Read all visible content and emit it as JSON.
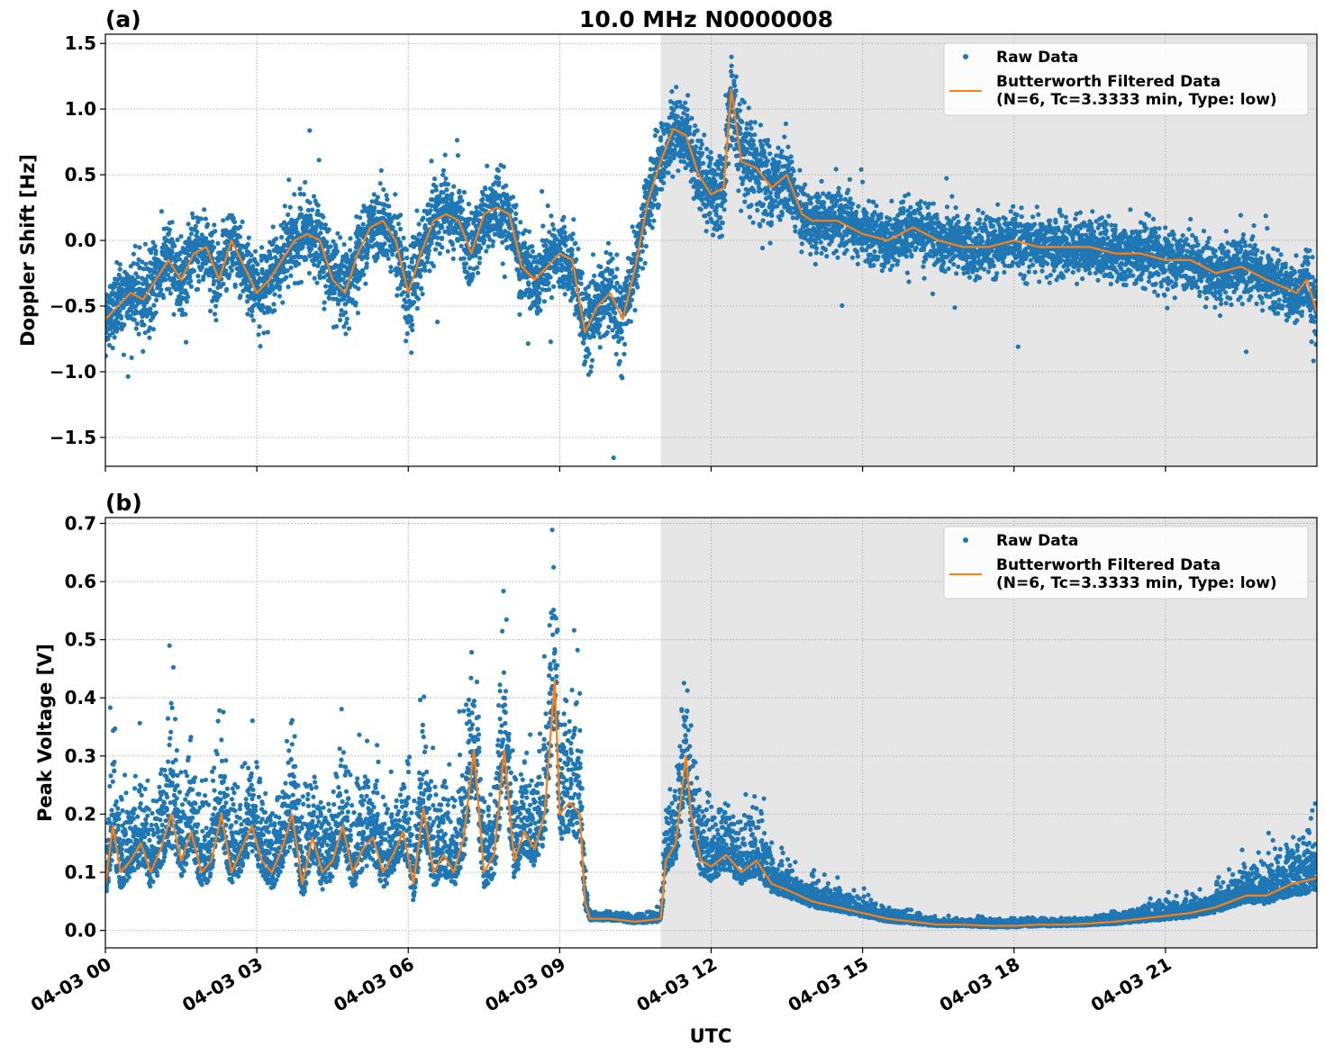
{
  "figure": {
    "title": "10.0 MHz N0000008",
    "xlabel": "UTC",
    "shaded_region": {
      "start_hour": 11.0,
      "end_hour": 24.0,
      "color": "#e6e6e6"
    },
    "x_ticks": [
      {
        "hour": 0,
        "label": "04-03 00"
      },
      {
        "hour": 3,
        "label": "04-03 03"
      },
      {
        "hour": 6,
        "label": "04-03 06"
      },
      {
        "hour": 9,
        "label": "04-03 09"
      },
      {
        "hour": 12,
        "label": "04-03 12"
      },
      {
        "hour": 15,
        "label": "04-03 15"
      },
      {
        "hour": 18,
        "label": "04-03 18"
      },
      {
        "hour": 21,
        "label": "04-03 21"
      }
    ],
    "xlim": [
      0,
      24
    ],
    "colors": {
      "raw": "#1f77b4",
      "filtered": "#ff7f0e",
      "grid": "#b0b0b0"
    }
  },
  "legend": {
    "raw_label": "Raw Data",
    "filtered_label_line1": "Butterworth Filtered Data",
    "filtered_label_line2": "(N=6, Tc=3.3333 min, Type: low)",
    "placement": "upper right"
  },
  "panels": [
    {
      "id": "a",
      "letter": "(a)",
      "ylabel": "Doppler Shift [Hz]",
      "ylim": [
        -1.72,
        1.57
      ],
      "yticks": [
        1.5,
        1.0,
        0.5,
        0.0,
        -0.5,
        -1.0,
        -1.5
      ],
      "ytick_labels": [
        "1.5",
        "1.0",
        "0.5",
        "0.0",
        "−0.5",
        "−1.0",
        "−1.5"
      ]
    },
    {
      "id": "b",
      "letter": "(b)",
      "ylabel": "Peak Voltage [V]",
      "ylim": [
        -0.03,
        0.71
      ],
      "yticks": [
        0.7,
        0.6,
        0.5,
        0.4,
        0.3,
        0.2,
        0.1,
        0.0
      ],
      "ytick_labels": [
        "0.7",
        "0.6",
        "0.5",
        "0.4",
        "0.3",
        "0.2",
        "0.1",
        "0.0"
      ]
    }
  ],
  "chart_data": [
    {
      "type": "scatter",
      "title": "10.0 MHz N0000008",
      "panel": "(a)",
      "xlabel": "",
      "ylabel": "Doppler Shift [Hz]",
      "xlim": [
        0,
        24
      ],
      "ylim": [
        -1.72,
        1.57
      ],
      "grid": true,
      "legend": "top-right",
      "series": [
        {
          "name": "Butterworth Filtered Data (N=6, Tc=3.3333 min, Type: low)",
          "kind": "line",
          "color": "#ff7f0e",
          "x": [
            0.0,
            0.25,
            0.5,
            0.75,
            1.0,
            1.25,
            1.5,
            1.75,
            2.0,
            2.25,
            2.5,
            2.75,
            3.0,
            3.25,
            3.5,
            3.75,
            4.0,
            4.25,
            4.5,
            4.75,
            5.0,
            5.25,
            5.5,
            5.75,
            6.0,
            6.25,
            6.5,
            6.75,
            7.0,
            7.25,
            7.5,
            7.75,
            8.0,
            8.25,
            8.5,
            8.75,
            9.0,
            9.25,
            9.5,
            9.75,
            10.0,
            10.25,
            10.5,
            10.75,
            11.0,
            11.25,
            11.5,
            11.75,
            12.0,
            12.25,
            12.4,
            12.6,
            12.9,
            13.2,
            13.5,
            13.8,
            14.0,
            14.5,
            15.0,
            15.5,
            16.0,
            16.5,
            17.0,
            17.5,
            18.0,
            18.5,
            19.0,
            19.5,
            20.0,
            20.5,
            21.0,
            21.5,
            22.0,
            22.5,
            23.0,
            23.3,
            23.6,
            23.8,
            24.0
          ],
          "y": [
            -0.6,
            -0.5,
            -0.4,
            -0.45,
            -0.3,
            -0.15,
            -0.3,
            -0.1,
            -0.05,
            -0.3,
            0.0,
            -0.2,
            -0.4,
            -0.3,
            -0.15,
            0.0,
            0.05,
            0.0,
            -0.3,
            -0.4,
            -0.1,
            0.1,
            0.15,
            0.0,
            -0.4,
            -0.1,
            0.15,
            0.2,
            0.15,
            -0.1,
            0.2,
            0.25,
            0.2,
            -0.2,
            -0.3,
            -0.2,
            -0.1,
            -0.15,
            -0.7,
            -0.5,
            -0.4,
            -0.6,
            -0.2,
            0.3,
            0.6,
            0.85,
            0.8,
            0.5,
            0.35,
            0.4,
            1.15,
            0.6,
            0.55,
            0.4,
            0.5,
            0.2,
            0.15,
            0.15,
            0.05,
            0.0,
            0.1,
            0.0,
            -0.05,
            -0.05,
            0.0,
            -0.05,
            -0.05,
            -0.05,
            -0.1,
            -0.1,
            -0.15,
            -0.15,
            -0.25,
            -0.2,
            -0.3,
            -0.35,
            -0.4,
            -0.3,
            -0.55
          ]
        },
        {
          "name": "Raw Data",
          "kind": "scatter",
          "color": "#1f77b4",
          "spread_hz": [
            0.25,
            0.25,
            0.25,
            0.25,
            0.25,
            0.25,
            0.25,
            0.25,
            0.25,
            0.25,
            0.25,
            0.25,
            0.25,
            0.25,
            0.25,
            0.25,
            0.25,
            0.25,
            0.25,
            0.25,
            0.25,
            0.25,
            0.25,
            0.25,
            0.35,
            0.25,
            0.25,
            0.25,
            0.25,
            0.25,
            0.25,
            0.25,
            0.25,
            0.25,
            0.25,
            0.25,
            0.25,
            0.25,
            0.3,
            0.3,
            0.3,
            0.3,
            0.25,
            0.25,
            0.25,
            0.25,
            0.25,
            0.25,
            0.3,
            0.3,
            0.3,
            0.3,
            0.3,
            0.3,
            0.25,
            0.2,
            0.2,
            0.2,
            0.2,
            0.2,
            0.2,
            0.2,
            0.2,
            0.2,
            0.2,
            0.2,
            0.2,
            0.2,
            0.2,
            0.2,
            0.2,
            0.2,
            0.2,
            0.2,
            0.2,
            0.2,
            0.2,
            0.2,
            0.25
          ]
        }
      ]
    },
    {
      "type": "scatter",
      "panel": "(b)",
      "xlabel": "UTC",
      "ylabel": "Peak Voltage [V]",
      "xlim": [
        0,
        24
      ],
      "ylim": [
        -0.03,
        0.71
      ],
      "grid": true,
      "legend": "top-right",
      "series": [
        {
          "name": "Butterworth Filtered Data (N=6, Tc=3.3333 min, Type: low)",
          "kind": "line",
          "color": "#ff7f0e",
          "x": [
            0.0,
            0.15,
            0.3,
            0.5,
            0.7,
            0.9,
            1.1,
            1.3,
            1.5,
            1.7,
            1.9,
            2.1,
            2.3,
            2.5,
            2.7,
            2.9,
            3.1,
            3.3,
            3.5,
            3.7,
            3.9,
            4.1,
            4.3,
            4.5,
            4.7,
            4.9,
            5.1,
            5.3,
            5.5,
            5.7,
            5.9,
            6.1,
            6.3,
            6.5,
            6.7,
            6.9,
            7.1,
            7.3,
            7.5,
            7.7,
            7.9,
            8.1,
            8.3,
            8.5,
            8.7,
            8.9,
            9.0,
            9.2,
            9.4,
            9.5,
            9.6,
            10.0,
            10.5,
            11.0,
            11.1,
            11.3,
            11.5,
            11.6,
            11.8,
            12.0,
            12.3,
            12.6,
            12.9,
            13.2,
            13.5,
            14.0,
            14.5,
            15.0,
            15.5,
            16.0,
            16.5,
            17.0,
            17.5,
            18.0,
            18.5,
            19.0,
            19.5,
            20.0,
            20.5,
            21.0,
            21.5,
            22.0,
            22.3,
            22.6,
            23.0,
            23.5,
            24.0
          ],
          "y": [
            0.08,
            0.18,
            0.1,
            0.12,
            0.15,
            0.1,
            0.14,
            0.2,
            0.12,
            0.17,
            0.1,
            0.12,
            0.2,
            0.1,
            0.14,
            0.18,
            0.12,
            0.1,
            0.14,
            0.2,
            0.08,
            0.16,
            0.1,
            0.12,
            0.18,
            0.1,
            0.14,
            0.16,
            0.1,
            0.13,
            0.17,
            0.08,
            0.21,
            0.1,
            0.13,
            0.1,
            0.16,
            0.31,
            0.1,
            0.13,
            0.31,
            0.12,
            0.17,
            0.14,
            0.2,
            0.43,
            0.2,
            0.22,
            0.2,
            0.05,
            0.02,
            0.02,
            0.015,
            0.02,
            0.12,
            0.15,
            0.3,
            0.2,
            0.12,
            0.11,
            0.13,
            0.1,
            0.12,
            0.08,
            0.07,
            0.05,
            0.04,
            0.03,
            0.02,
            0.015,
            0.01,
            0.01,
            0.008,
            0.008,
            0.01,
            0.01,
            0.012,
            0.015,
            0.02,
            0.025,
            0.03,
            0.04,
            0.05,
            0.06,
            0.06,
            0.08,
            0.09
          ]
        },
        {
          "name": "Raw Data",
          "kind": "scatter",
          "color": "#1f77b4",
          "spread_v": [
            0.1,
            0.2,
            0.12,
            0.12,
            0.14,
            0.12,
            0.14,
            0.2,
            0.12,
            0.14,
            0.12,
            0.12,
            0.16,
            0.12,
            0.14,
            0.16,
            0.12,
            0.12,
            0.14,
            0.18,
            0.12,
            0.14,
            0.12,
            0.12,
            0.14,
            0.12,
            0.14,
            0.16,
            0.12,
            0.13,
            0.15,
            0.12,
            0.18,
            0.12,
            0.14,
            0.12,
            0.16,
            0.22,
            0.12,
            0.14,
            0.24,
            0.12,
            0.15,
            0.14,
            0.18,
            0.3,
            0.2,
            0.2,
            0.18,
            0.05,
            0.01,
            0.01,
            0.01,
            0.02,
            0.1,
            0.12,
            0.22,
            0.15,
            0.1,
            0.1,
            0.1,
            0.08,
            0.1,
            0.06,
            0.05,
            0.04,
            0.03,
            0.025,
            0.02,
            0.015,
            0.01,
            0.01,
            0.01,
            0.01,
            0.01,
            0.01,
            0.012,
            0.015,
            0.02,
            0.025,
            0.03,
            0.035,
            0.04,
            0.05,
            0.06,
            0.08,
            0.1
          ]
        }
      ]
    }
  ]
}
